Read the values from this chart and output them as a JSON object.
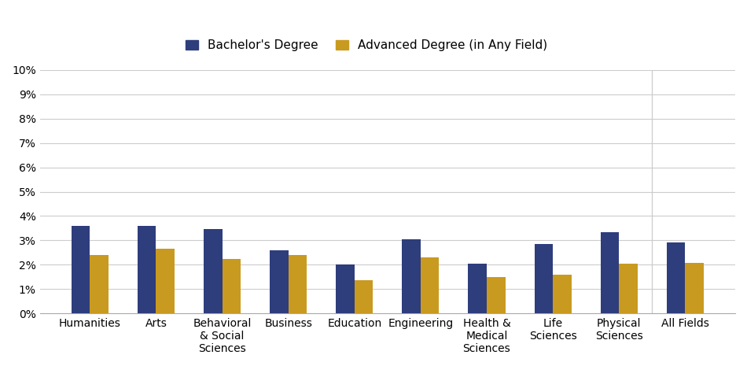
{
  "categories": [
    "Humanities",
    "Arts",
    "Behavioral\n& Social\nSciences",
    "Business",
    "Education",
    "Engineering",
    "Health &\nMedical\nSciences",
    "Life\nSciences",
    "Physical\nSciences",
    "All Fields"
  ],
  "bachelor": [
    3.6,
    3.6,
    3.45,
    2.6,
    2.0,
    3.05,
    2.05,
    2.85,
    3.35,
    2.9
  ],
  "advanced": [
    2.4,
    2.65,
    2.25,
    2.4,
    1.35,
    2.3,
    1.5,
    1.6,
    2.05,
    2.07
  ],
  "bachelor_color": "#2e3d7c",
  "advanced_color": "#c99a20",
  "background_color": "#ffffff",
  "grid_color": "#cccccc",
  "ylim": [
    0,
    10
  ],
  "yticks": [
    0,
    1,
    2,
    3,
    4,
    5,
    6,
    7,
    8,
    9,
    10
  ],
  "legend_bachelor": "Bachelor's Degree",
  "legend_advanced": "Advanced Degree (in Any Field)",
  "bar_width": 0.28,
  "separator_index": 9,
  "tick_fontsize": 10,
  "legend_fontsize": 11
}
